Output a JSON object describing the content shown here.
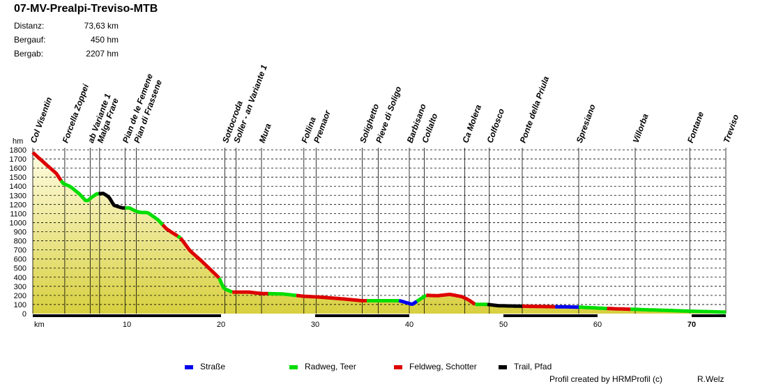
{
  "title": "07-MV-Prealpi-Treviso-MTB",
  "stats": [
    {
      "label": "Distanz:",
      "value": "73,63 km"
    },
    {
      "label": "Bergauf:",
      "value": "450 hm"
    },
    {
      "label": "Bergab:",
      "value": "2207 hm"
    }
  ],
  "colors": {
    "strasse": "#0000ee",
    "radweg": "#00dd00",
    "feldweg": "#dd0000",
    "trail": "#000000",
    "fill_top": "#fffce0",
    "fill_bottom": "#d8d040"
  },
  "legend": [
    {
      "label": "Straße",
      "color": "#0000ee"
    },
    {
      "label": "Radweg, Teer",
      "color": "#00dd00"
    },
    {
      "label": "Feldweg, Schotter",
      "color": "#dd0000"
    },
    {
      "label": "Trail, Pfad",
      "color": "#000000"
    }
  ],
  "credit_left": "Profil created by HRMProfil (c)",
  "credit_right": "R.Welz",
  "chart_data": {
    "type": "area",
    "ylabel": "hm",
    "xlabel": "km",
    "xlim": [
      0,
      73.63
    ],
    "ylim": [
      0,
      1800
    ],
    "yticks": [
      0,
      100,
      200,
      300,
      400,
      500,
      600,
      700,
      800,
      900,
      1000,
      1100,
      1200,
      1300,
      1400,
      1500,
      1600,
      1700,
      1800
    ],
    "xticks": [
      10,
      20,
      30,
      40,
      50,
      60,
      70
    ],
    "grid": true,
    "profile": [
      [
        0,
        1760
      ],
      [
        1.5,
        1620
      ],
      [
        2.5,
        1530
      ],
      [
        3.2,
        1420
      ],
      [
        4,
        1385
      ],
      [
        5,
        1300
      ],
      [
        5.7,
        1220
      ],
      [
        6.3,
        1270
      ],
      [
        6.8,
        1305
      ],
      [
        7.5,
        1310
      ],
      [
        8.1,
        1270
      ],
      [
        8.6,
        1180
      ],
      [
        9.5,
        1150
      ],
      [
        10.3,
        1150
      ],
      [
        10.7,
        1125
      ],
      [
        11.4,
        1100
      ],
      [
        12.2,
        1100
      ],
      [
        13.3,
        1020
      ],
      [
        14.2,
        920
      ],
      [
        15.7,
        820
      ],
      [
        16.7,
        680
      ],
      [
        18,
        560
      ],
      [
        19.2,
        440
      ],
      [
        19.8,
        380
      ],
      [
        20.3,
        265
      ],
      [
        21.2,
        225
      ],
      [
        23,
        225
      ],
      [
        24.2,
        210
      ],
      [
        26.5,
        205
      ],
      [
        28.7,
        180
      ],
      [
        30.5,
        170
      ],
      [
        33,
        150
      ],
      [
        35,
        130
      ],
      [
        37,
        130
      ],
      [
        39,
        130
      ],
      [
        40.3,
        90
      ],
      [
        41.2,
        150
      ],
      [
        41.8,
        190
      ],
      [
        43,
        185
      ],
      [
        44.3,
        200
      ],
      [
        45.6,
        175
      ],
      [
        46.3,
        140
      ],
      [
        47,
        90
      ],
      [
        48.3,
        90
      ],
      [
        49.5,
        75
      ],
      [
        52,
        70
      ],
      [
        55,
        65
      ],
      [
        58,
        60
      ],
      [
        61,
        45
      ],
      [
        64,
        35
      ],
      [
        67,
        25
      ],
      [
        70,
        15
      ],
      [
        73.63,
        5
      ]
    ],
    "surfaces": [
      {
        "from": 0,
        "to": 3.0,
        "type": "feldweg"
      },
      {
        "from": 3.0,
        "to": 6.3,
        "type": "radweg"
      },
      {
        "from": 6.3,
        "to": 7.0,
        "type": "radweg"
      },
      {
        "from": 7.0,
        "to": 9.8,
        "type": "trail"
      },
      {
        "from": 9.8,
        "to": 13.8,
        "type": "radweg"
      },
      {
        "from": 13.8,
        "to": 15.4,
        "type": "feldweg"
      },
      {
        "from": 15.4,
        "to": 15.7,
        "type": "radweg"
      },
      {
        "from": 15.7,
        "to": 19.8,
        "type": "feldweg"
      },
      {
        "from": 19.8,
        "to": 21.2,
        "type": "radweg"
      },
      {
        "from": 21.2,
        "to": 25.0,
        "type": "feldweg"
      },
      {
        "from": 25.0,
        "to": 28.0,
        "type": "radweg"
      },
      {
        "from": 28.0,
        "to": 30.0,
        "type": "feldweg"
      },
      {
        "from": 30.0,
        "to": 35.5,
        "type": "feldweg"
      },
      {
        "from": 35.5,
        "to": 38.9,
        "type": "radweg"
      },
      {
        "from": 38.9,
        "to": 40.8,
        "type": "strasse"
      },
      {
        "from": 40.8,
        "to": 41.8,
        "type": "radweg"
      },
      {
        "from": 41.8,
        "to": 46.3,
        "type": "feldweg"
      },
      {
        "from": 46.3,
        "to": 47.0,
        "type": "feldweg"
      },
      {
        "from": 47.0,
        "to": 48.3,
        "type": "radweg"
      },
      {
        "from": 48.3,
        "to": 52.0,
        "type": "trail"
      },
      {
        "from": 52.0,
        "to": 55.5,
        "type": "feldweg"
      },
      {
        "from": 55.5,
        "to": 58.0,
        "type": "strasse"
      },
      {
        "from": 58.0,
        "to": 61.0,
        "type": "radweg"
      },
      {
        "from": 61.0,
        "to": 63.5,
        "type": "feldweg"
      },
      {
        "from": 63.5,
        "to": 73.63,
        "type": "radweg"
      }
    ],
    "bottom_bar": [
      {
        "from": 0,
        "to": 10,
        "color": "#000000"
      },
      {
        "from": 10,
        "to": 20,
        "color": "#000000"
      },
      {
        "from": 20,
        "to": 30,
        "color": "#ffffff"
      },
      {
        "from": 30,
        "to": 40,
        "color": "#000000"
      },
      {
        "from": 40,
        "to": 50,
        "color": "#ffffff"
      },
      {
        "from": 50,
        "to": 60,
        "color": "#000000"
      },
      {
        "from": 60,
        "to": 70,
        "color": "#ffffff"
      },
      {
        "from": 70,
        "to": 73.63,
        "color": "#000000"
      }
    ],
    "locations": [
      {
        "name": "Col Visentin",
        "km": 0
      },
      {
        "name": "Forcella Zoppei",
        "km": 3.4
      },
      {
        "name": "ab Variante 1",
        "km": 6.1
      },
      {
        "name": "Malga Frare",
        "km": 7.1
      },
      {
        "name": "Pian de le Femene",
        "km": 9.8
      },
      {
        "name": "Pian di Frassene",
        "km": 11.0
      },
      {
        "name": "Sottocroda",
        "km": 20.4
      },
      {
        "name": "Soller - an Variante 1",
        "km": 21.6
      },
      {
        "name": "Mura",
        "km": 24.3
      },
      {
        "name": "Follina",
        "km": 28.8
      },
      {
        "name": "Premaor",
        "km": 30.1
      },
      {
        "name": "Solighetto",
        "km": 35.0
      },
      {
        "name": "Pieve di Soligo",
        "km": 36.7
      },
      {
        "name": "Barbisano",
        "km": 40.0
      },
      {
        "name": "Collalto",
        "km": 41.6
      },
      {
        "name": "Ca Molera",
        "km": 45.9
      },
      {
        "name": "Colfosco",
        "km": 48.5
      },
      {
        "name": "Ponte della Priula",
        "km": 52.0
      },
      {
        "name": "Spresiano",
        "km": 58.0
      },
      {
        "name": "Villorba",
        "km": 64.0
      },
      {
        "name": "Fontane",
        "km": 69.8
      },
      {
        "name": "Treviso",
        "km": 73.63
      }
    ]
  }
}
